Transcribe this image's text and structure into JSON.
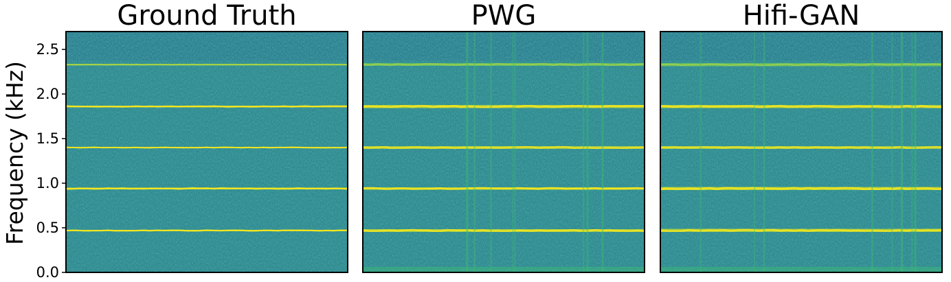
{
  "chart_data": {
    "type": "heatmap",
    "ylabel": "Frequency (kHz)",
    "ylim": [
      0.0,
      2.7
    ],
    "yticks": [
      0.0,
      0.5,
      1.0,
      1.5,
      2.0,
      2.5
    ],
    "ytick_labels": [
      "0.0",
      "0.5",
      "1.0",
      "1.5",
      "2.0",
      "2.5"
    ],
    "colormap": "viridis",
    "colors": {
      "background": "#2f8a8c",
      "band_strong": "#f5e61e",
      "band_weak": "#8fd14f",
      "band_glow": "#3fbc73"
    },
    "panels": [
      {
        "title": "Ground Truth",
        "harmonics_khz": [
          0.47,
          0.94,
          1.4,
          1.86,
          2.33
        ],
        "harmonic_intensity": [
          0.92,
          1.0,
          0.82,
          0.95,
          0.55
        ],
        "artifacts_vertical": false
      },
      {
        "title": "PWG",
        "harmonics_khz": [
          0.47,
          0.94,
          1.4,
          1.86,
          2.33
        ],
        "harmonic_intensity": [
          0.85,
          0.95,
          0.75,
          0.9,
          0.45
        ],
        "artifacts_vertical": true
      },
      {
        "title": "Hifi-GAN",
        "harmonics_khz": [
          0.47,
          0.94,
          1.4,
          1.86,
          2.33
        ],
        "harmonic_intensity": [
          0.85,
          0.92,
          0.72,
          0.88,
          0.45
        ],
        "artifacts_vertical": true
      }
    ]
  }
}
